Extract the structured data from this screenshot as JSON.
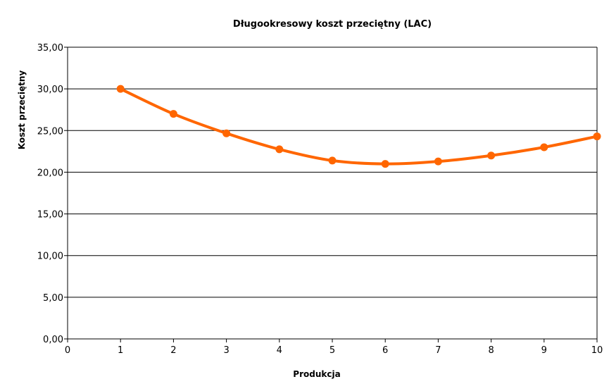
{
  "chart_data": {
    "type": "line",
    "title": "Długookresowy koszt przeciętny (LAC)",
    "xlabel": "Produkcja",
    "ylabel": "Koszt przeciętny",
    "xlim": [
      0,
      10
    ],
    "ylim": [
      0,
      35
    ],
    "x_ticks": [
      "0",
      "1",
      "2",
      "3",
      "4",
      "5",
      "6",
      "7",
      "8",
      "9",
      "10"
    ],
    "y_ticks": [
      "0,00",
      "5,00",
      "10,00",
      "15,00",
      "20,00",
      "25,00",
      "30,00",
      "35,00"
    ],
    "grid": "horizontal",
    "legend": "none",
    "smooth": true,
    "color": "#ff6600",
    "series": [
      {
        "x": [
          1,
          2,
          3,
          4,
          5,
          6,
          7,
          8,
          9,
          10
        ],
        "values": [
          30.0,
          27.0,
          24.67,
          22.75,
          21.4,
          21.0,
          21.29,
          22.0,
          23.0,
          24.3
        ]
      }
    ]
  }
}
